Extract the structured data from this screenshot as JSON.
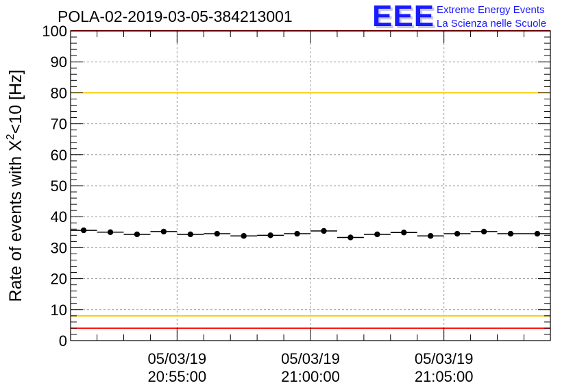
{
  "chart_data": {
    "type": "scatter",
    "title": "POLA-02-2019-03-05-384213001",
    "ylabel_main": "Rate of events with X",
    "ylabel_sup": "2",
    "ylabel_tail": "<10 [Hz]",
    "xlabel": "",
    "ylim": [
      0,
      100
    ],
    "yticks": [
      "0",
      "10",
      "20",
      "30",
      "40",
      "50",
      "60",
      "70",
      "80",
      "90",
      "100"
    ],
    "xlim_minutes": [
      -8.99,
      8.99
    ],
    "xticks": [
      {
        "minute": -5,
        "date": "05/03/19",
        "time": "20:55:00"
      },
      {
        "minute": 0,
        "date": "05/03/19",
        "time": "21:00:00"
      },
      {
        "minute": 5,
        "date": "05/03/19",
        "time": "21:05:00"
      }
    ],
    "bin_width_minutes": 1,
    "points": [
      {
        "x": -8.5,
        "y": 35.6
      },
      {
        "x": -7.5,
        "y": 35.0
      },
      {
        "x": -6.5,
        "y": 34.3
      },
      {
        "x": -5.5,
        "y": 35.2
      },
      {
        "x": -4.5,
        "y": 34.3
      },
      {
        "x": -3.5,
        "y": 34.5
      },
      {
        "x": -2.5,
        "y": 33.8
      },
      {
        "x": -1.5,
        "y": 34.0
      },
      {
        "x": -0.5,
        "y": 34.5
      },
      {
        "x": 0.5,
        "y": 35.4
      },
      {
        "x": 1.5,
        "y": 33.3
      },
      {
        "x": 2.5,
        "y": 34.3
      },
      {
        "x": 3.5,
        "y": 34.9
      },
      {
        "x": 4.5,
        "y": 33.8
      },
      {
        "x": 5.5,
        "y": 34.5
      },
      {
        "x": 6.5,
        "y": 35.2
      },
      {
        "x": 7.5,
        "y": 34.5
      },
      {
        "x": 8.5,
        "y": 34.5
      }
    ],
    "reference_lines": [
      {
        "name": "upper-red",
        "y": 100,
        "color": "#ff0000"
      },
      {
        "name": "upper-yellow",
        "y": 80,
        "color": "#ffcc00"
      },
      {
        "name": "lower-yellow",
        "y": 8,
        "color": "#ffcc00"
      },
      {
        "name": "lower-red",
        "y": 4,
        "color": "#ff0000"
      }
    ],
    "grid": true
  },
  "logo": {
    "mark": "EEE",
    "line1": "Extreme Energy Events",
    "line2": "La Scienza nelle Scuole",
    "color": "#1a1aff"
  }
}
